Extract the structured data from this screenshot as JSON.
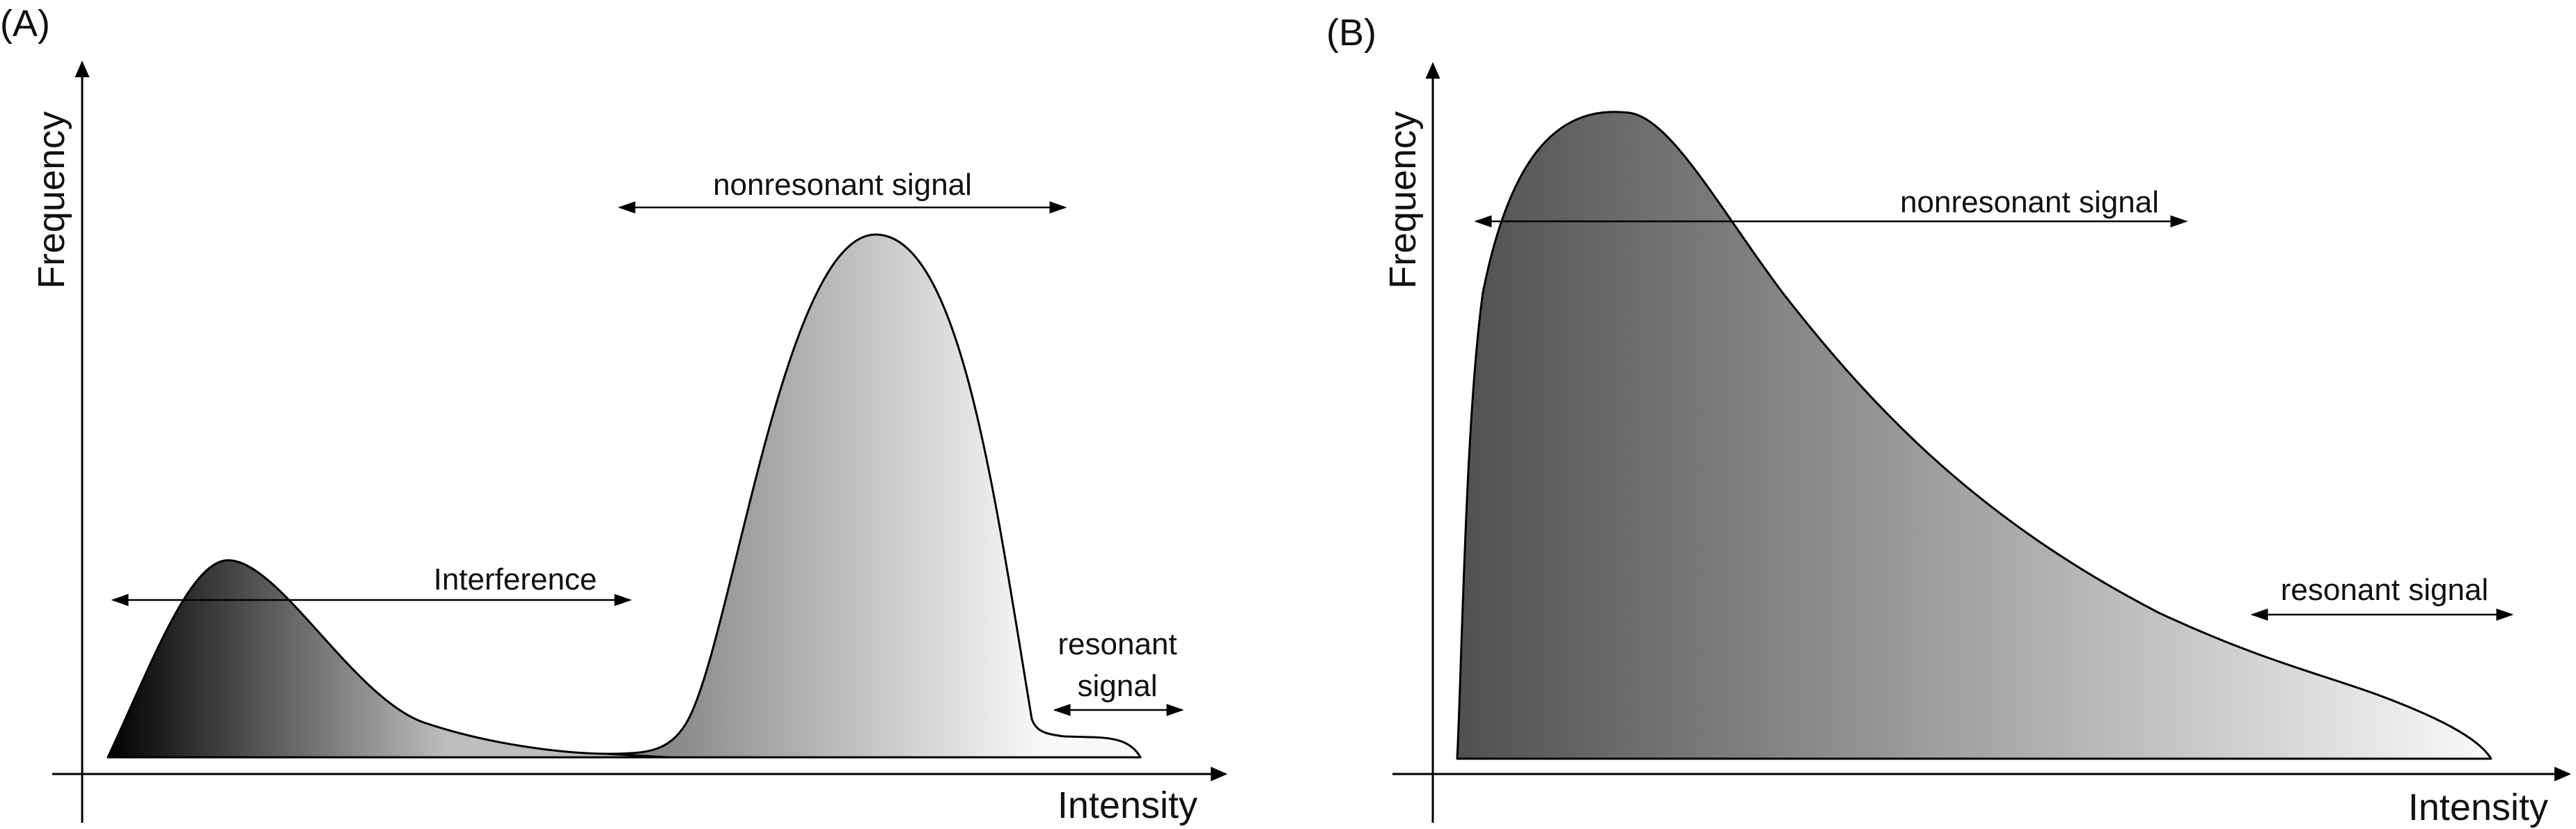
{
  "panels": [
    {
      "label": "(A)",
      "x_axis_label": "Intensity",
      "y_axis_label": "Frequency",
      "annotations": {
        "interference": "Interference",
        "nonresonant": "nonresonant signal",
        "resonant_line1": "resonant",
        "resonant_line2": "signal"
      }
    },
    {
      "label": "(B)",
      "x_axis_label": "Intensity",
      "y_axis_label": "Frequency",
      "annotations": {
        "nonresonant": "nonresonant signal",
        "resonant": "resonant signal"
      }
    }
  ],
  "colors": {
    "outline": "#000000",
    "a_peak1_dark": "#000000",
    "a_peak1_light": "#bdbdbd",
    "a_peak2_dark": "#888888",
    "a_peak2_light": "#f8f8f8",
    "b_dark": "#505050",
    "b_light": "#fafafa"
  }
}
